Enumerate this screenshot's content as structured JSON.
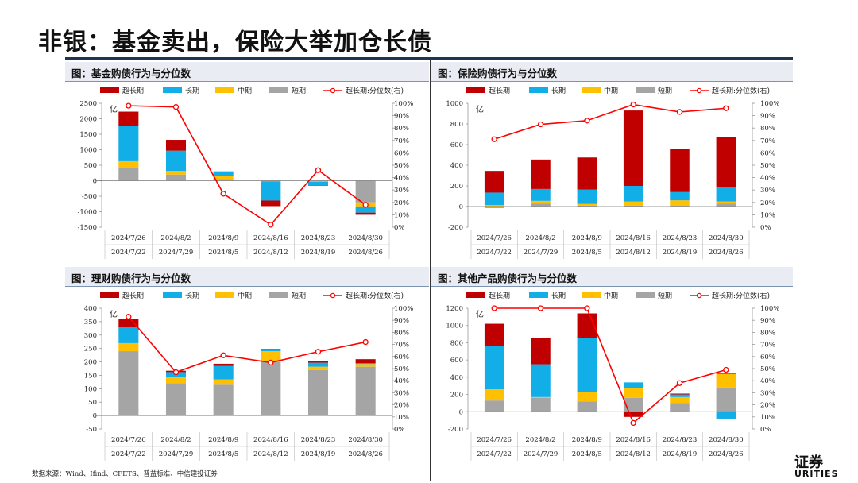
{
  "page": {
    "title": "非银：基金卖出，保险大举加仓长债",
    "footnote": "数据来源：Wind、Ifind、CFETS、普益标准、中信建投证券",
    "logo_line1": "证券",
    "logo_line2": "URITIES"
  },
  "legend": {
    "ultra": "超长期",
    "long": "长期",
    "mid": "中期",
    "short": "短期",
    "line": "超长期:分位数(右)"
  },
  "colors": {
    "ultra": "#c00000",
    "long": "#12aee8",
    "mid": "#ffc000",
    "short": "#a5a5a5",
    "line": "#ff0000"
  },
  "chart_data": [
    {
      "id": "fund",
      "type": "bar",
      "title": "图：基金购债行为与分位数",
      "unit_label": "亿",
      "x_top": [
        "2024/7/26",
        "2024/8/2",
        "2024/8/9",
        "2024/8/16",
        "2024/8/23",
        "2024/8/30"
      ],
      "x_bottom": [
        "2024/7/22",
        "2024/7/29",
        "2024/8/5",
        "2024/8/12",
        "2024/8/19",
        "2024/8/26"
      ],
      "ylim": [
        -1500,
        2500
      ],
      "yticks": [
        -1500,
        -1000,
        -500,
        0,
        500,
        1000,
        1500,
        2000,
        2500
      ],
      "y2ticks": [
        "0%",
        "10%",
        "20%",
        "30%",
        "40%",
        "50%",
        "60%",
        "70%",
        "80%",
        "90%",
        "100%"
      ],
      "series": [
        {
          "key": "short",
          "name": "短期",
          "values": [
            400,
            200,
            50,
            -10,
            -20,
            -700
          ]
        },
        {
          "key": "mid",
          "name": "中期",
          "values": [
            230,
            120,
            100,
            -10,
            -10,
            -130
          ]
        },
        {
          "key": "long",
          "name": "长期",
          "values": [
            1150,
            650,
            130,
            -620,
            -120,
            -200
          ]
        },
        {
          "key": "ultra",
          "name": "超长期",
          "values": [
            450,
            350,
            20,
            -180,
            -10,
            -70
          ]
        }
      ],
      "line": {
        "name": "超长期:分位数(右)",
        "values": [
          98,
          97,
          27,
          2,
          46,
          18
        ]
      }
    },
    {
      "id": "insurance",
      "type": "bar",
      "title": "图：保险购债行为与分位数",
      "unit_label": "亿",
      "x_top": [
        "2024/7/26",
        "2024/8/2",
        "2024/8/9",
        "2024/8/16",
        "2024/8/23",
        "2024/8/30"
      ],
      "x_bottom": [
        "2024/7/22",
        "2024/7/29",
        "2024/8/5",
        "2024/8/12",
        "2024/8/19",
        "2024/8/26"
      ],
      "ylim": [
        -200,
        1000
      ],
      "yticks": [
        -200,
        0,
        200,
        400,
        600,
        800,
        1000
      ],
      "y2ticks": [
        "0%",
        "10%",
        "20%",
        "30%",
        "40%",
        "50%",
        "60%",
        "70%",
        "80%",
        "90%",
        "100%"
      ],
      "series": [
        {
          "key": "short",
          "name": "短期",
          "values": [
            -15,
            30,
            10,
            10,
            10,
            30
          ]
        },
        {
          "key": "mid",
          "name": "中期",
          "values": [
            15,
            25,
            15,
            40,
            50,
            20
          ]
        },
        {
          "key": "long",
          "name": "长期",
          "values": [
            120,
            115,
            140,
            150,
            80,
            140
          ]
        },
        {
          "key": "ultra",
          "name": "超长期",
          "values": [
            210,
            285,
            310,
            730,
            420,
            480
          ]
        }
      ],
      "line": {
        "name": "超长期:分位数(右)",
        "values": [
          71,
          83,
          86,
          99,
          93,
          96
        ]
      }
    },
    {
      "id": "wealth",
      "type": "bar",
      "title": "图：理财购债行为与分位数",
      "unit_label": "亿",
      "x_top": [
        "2024/7/26",
        "2024/8/2",
        "2024/8/9",
        "2024/8/16",
        "2024/8/23",
        "2024/8/30"
      ],
      "x_bottom": [
        "2024/7/22",
        "2024/7/29",
        "2024/8/5",
        "2024/8/12",
        "2024/8/19",
        "2024/8/26"
      ],
      "ylim": [
        -50,
        400
      ],
      "yticks": [
        -50,
        0,
        50,
        100,
        150,
        200,
        250,
        300,
        350,
        400
      ],
      "y2ticks": [
        "0%",
        "10%",
        "20%",
        "30%",
        "40%",
        "50%",
        "60%",
        "70%",
        "80%",
        "90%",
        "100%"
      ],
      "series": [
        {
          "key": "short",
          "name": "短期",
          "values": [
            240,
            120,
            115,
            200,
            170,
            182
          ]
        },
        {
          "key": "mid",
          "name": "中期",
          "values": [
            30,
            22,
            20,
            40,
            12,
            10
          ]
        },
        {
          "key": "long",
          "name": "长期",
          "values": [
            60,
            20,
            50,
            5,
            15,
            3
          ]
        },
        {
          "key": "ultra",
          "name": "超长期",
          "values": [
            30,
            5,
            8,
            3,
            5,
            15
          ]
        }
      ],
      "line": {
        "name": "超长期:分位数(右)",
        "values": [
          93,
          47,
          61,
          55,
          64,
          72
        ]
      }
    },
    {
      "id": "other",
      "type": "bar",
      "title": "图：其他产品购债行为与分位数",
      "unit_label": "亿",
      "x_top": [
        "2024/7/26",
        "2024/8/2",
        "2024/8/9",
        "2024/8/16",
        "2024/8/23",
        "2024/8/30"
      ],
      "x_bottom": [
        "2024/7/22",
        "2024/7/29",
        "2024/8/5",
        "2024/8/12",
        "2024/8/19",
        "2024/8/26"
      ],
      "ylim": [
        -200,
        1200
      ],
      "yticks": [
        -200,
        0,
        200,
        400,
        600,
        800,
        1000,
        1200
      ],
      "y2ticks": [
        "0%",
        "10%",
        "20%",
        "30%",
        "40%",
        "50%",
        "60%",
        "70%",
        "80%",
        "90%",
        "100%"
      ],
      "series": [
        {
          "key": "short",
          "name": "短期",
          "values": [
            130,
            160,
            120,
            160,
            100,
            280
          ]
        },
        {
          "key": "mid",
          "name": "中期",
          "values": [
            130,
            10,
            110,
            110,
            70,
            160
          ]
        },
        {
          "key": "long",
          "name": "长期",
          "values": [
            500,
            380,
            620,
            70,
            30,
            -80
          ]
        },
        {
          "key": "ultra",
          "name": "超长期",
          "values": [
            260,
            300,
            290,
            -60,
            10,
            10
          ]
        }
      ],
      "line": {
        "name": "超长期:分位数(右)",
        "values": [
          100,
          100,
          100,
          5,
          38,
          49
        ]
      }
    }
  ]
}
